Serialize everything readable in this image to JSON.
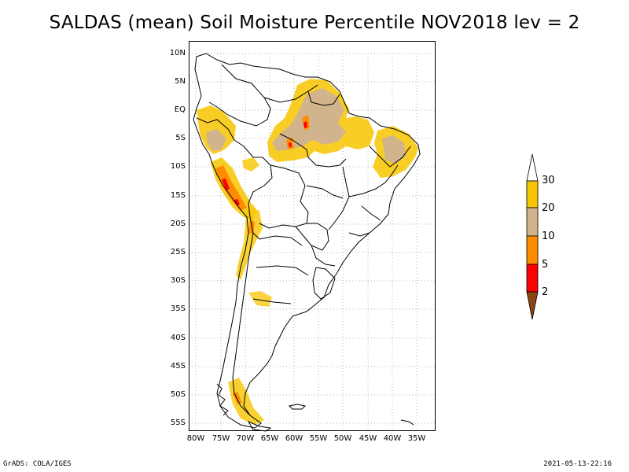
{
  "title": "SALDAS (mean) Soil Moisture Percentile NOV2018 lev = 2",
  "map": {
    "lat_ticks": [
      "10N",
      "5N",
      "EQ",
      "5S",
      "10S",
      "15S",
      "20S",
      "25S",
      "30S",
      "35S",
      "40S",
      "45S",
      "50S",
      "55S"
    ],
    "lon_ticks": [
      "80W",
      "75W",
      "70W",
      "65W",
      "60W",
      "55W",
      "50W",
      "45W",
      "40W",
      "35W"
    ],
    "lat_range": [
      -56,
      11
    ],
    "lon_range": [
      -81,
      -32
    ],
    "gridlines": "dotted"
  },
  "legend": {
    "labels": [
      "30",
      "20",
      "10",
      "5",
      "2"
    ],
    "colors": {
      "above_30": "#ffffff",
      "p20_30": "#f7c600",
      "p10_20": "#d2b48c",
      "p5_10": "#ff8c00",
      "p2_5": "#ff0000",
      "below_2": "#8b4513"
    }
  },
  "footer": {
    "left": "GrADS: COLA/IGES",
    "right": "2021-05-13-22:16"
  }
}
